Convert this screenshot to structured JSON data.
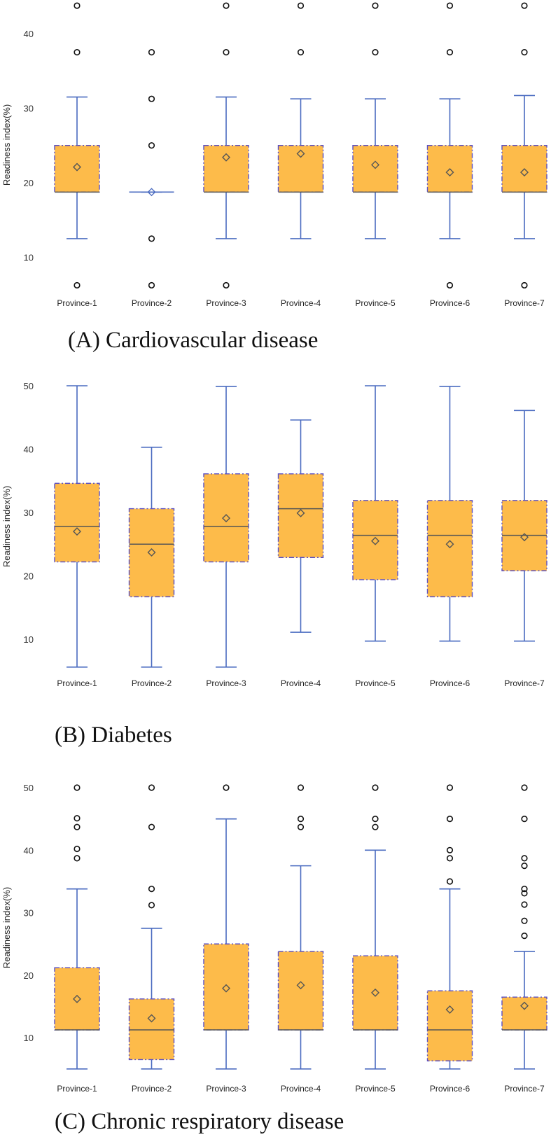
{
  "colors": {
    "box_fill": "#FDBB4A",
    "box_border": "#5A4FC4",
    "whisker": "#4A6BC0",
    "median": "#555555",
    "mean": "#555555",
    "outlier": "#111111"
  },
  "chart_data": [
    {
      "type": "box",
      "title": "(A) Cardiovascular disease",
      "ylabel": "Readiness index(%)",
      "xlabel": "",
      "yticks": [
        10,
        20,
        30,
        40
      ],
      "categories": [
        "Province-1",
        "Province-2",
        "Province-3",
        "Province-4",
        "Province-5",
        "Province-6",
        "Province-7"
      ],
      "series": [
        {
          "name": "Province-1",
          "whisker_low": 12.5,
          "q1": 18.75,
          "median": 18.75,
          "q3": 25,
          "whisker_high": 31.5,
          "mean": 22.1,
          "outliers": [
            43.75,
            37.5,
            6.25
          ]
        },
        {
          "name": "Province-2",
          "whisker_low": 18.75,
          "q1": 18.75,
          "median": 18.75,
          "q3": 18.75,
          "whisker_high": 18.75,
          "mean": 18.75,
          "outliers": [
            37.5,
            31.25,
            25,
            12.5,
            6.25
          ]
        },
        {
          "name": "Province-3",
          "whisker_low": 12.5,
          "q1": 18.75,
          "median": 18.75,
          "q3": 25,
          "whisker_high": 31.5,
          "mean": 23.4,
          "outliers": [
            43.75,
            37.5,
            6.25
          ]
        },
        {
          "name": "Province-4",
          "whisker_low": 12.5,
          "q1": 18.75,
          "median": 18.75,
          "q3": 25,
          "whisker_high": 31.25,
          "mean": 23.9,
          "outliers": [
            43.75,
            37.5
          ]
        },
        {
          "name": "Province-5",
          "whisker_low": 12.5,
          "q1": 18.75,
          "median": 18.75,
          "q3": 25,
          "whisker_high": 31.25,
          "mean": 22.4,
          "outliers": [
            43.75,
            37.5
          ]
        },
        {
          "name": "Province-6",
          "whisker_low": 12.5,
          "q1": 18.75,
          "median": 18.75,
          "q3": 25,
          "whisker_high": 31.25,
          "mean": 21.4,
          "outliers": [
            43.75,
            37.5,
            6.25
          ]
        },
        {
          "name": "Province-7",
          "whisker_low": 12.5,
          "q1": 18.75,
          "median": 18.75,
          "q3": 25,
          "whisker_high": 31.7,
          "mean": 21.4,
          "outliers": [
            43.75,
            37.5,
            6.25
          ]
        }
      ]
    },
    {
      "type": "box",
      "title": "(B) Diabetes",
      "ylabel": "Readiness index(%)",
      "xlabel": "",
      "yticks": [
        10,
        20,
        30,
        40,
        50
      ],
      "categories": [
        "Province-1",
        "Province-2",
        "Province-3",
        "Province-4",
        "Province-5",
        "Province-6",
        "Province-7"
      ],
      "series": [
        {
          "name": "Province-1",
          "whisker_low": 5.6,
          "q1": 22.2,
          "median": 27.8,
          "q3": 34.6,
          "whisker_high": 50,
          "mean": 27,
          "outliers": []
        },
        {
          "name": "Province-2",
          "whisker_low": 5.6,
          "q1": 16.7,
          "median": 25,
          "q3": 30.6,
          "whisker_high": 40.3,
          "mean": 23.7,
          "outliers": []
        },
        {
          "name": "Province-3",
          "whisker_low": 5.6,
          "q1": 22.2,
          "median": 27.8,
          "q3": 36.1,
          "whisker_high": 49.9,
          "mean": 29.1,
          "outliers": []
        },
        {
          "name": "Province-4",
          "whisker_low": 11.1,
          "q1": 22.9,
          "median": 30.6,
          "q3": 36.1,
          "whisker_high": 44.6,
          "mean": 29.9,
          "outliers": []
        },
        {
          "name": "Province-5",
          "whisker_low": 9.7,
          "q1": 19.4,
          "median": 26.4,
          "q3": 31.9,
          "whisker_high": 50,
          "mean": 25.5,
          "outliers": []
        },
        {
          "name": "Province-6",
          "whisker_low": 9.7,
          "q1": 16.7,
          "median": 26.4,
          "q3": 31.9,
          "whisker_high": 49.9,
          "mean": 25,
          "outliers": []
        },
        {
          "name": "Province-7",
          "whisker_low": 9.7,
          "q1": 20.8,
          "median": 26.4,
          "q3": 31.9,
          "whisker_high": 46.1,
          "mean": 26.1,
          "outliers": []
        }
      ]
    },
    {
      "type": "box",
      "title": "(C) Chronic respiratory disease",
      "ylabel": "Readiness index(%)",
      "xlabel": "",
      "yticks": [
        10,
        20,
        30,
        40,
        50
      ],
      "categories": [
        "Province-1",
        "Province-2",
        "Province-3",
        "Province-4",
        "Province-5",
        "Province-6",
        "Province-7"
      ],
      "series": [
        {
          "name": "Province-1",
          "whisker_low": 5,
          "q1": 11.25,
          "median": 11.25,
          "q3": 21.2,
          "whisker_high": 33.8,
          "mean": 16.2,
          "outliers": [
            50,
            45.1,
            43.7,
            40.2,
            38.7
          ]
        },
        {
          "name": "Province-2",
          "whisker_low": 5,
          "q1": 6.5,
          "median": 11.25,
          "q3": 16.2,
          "whisker_high": 27.5,
          "mean": 13.1,
          "outliers": [
            50,
            43.7,
            33.8,
            31.2
          ]
        },
        {
          "name": "Province-3",
          "whisker_low": 5,
          "q1": 11.25,
          "median": 11.25,
          "q3": 25,
          "whisker_high": 45,
          "mean": 17.9,
          "outliers": [
            50
          ]
        },
        {
          "name": "Province-4",
          "whisker_low": 5,
          "q1": 11.25,
          "median": 11.25,
          "q3": 23.8,
          "whisker_high": 37.5,
          "mean": 18.4,
          "outliers": [
            50,
            45,
            43.7
          ]
        },
        {
          "name": "Province-5",
          "whisker_low": 5,
          "q1": 11.25,
          "median": 11.25,
          "q3": 23.1,
          "whisker_high": 40,
          "mean": 17.2,
          "outliers": [
            50,
            45,
            43.7
          ]
        },
        {
          "name": "Province-6",
          "whisker_low": 5,
          "q1": 6.3,
          "median": 11.25,
          "q3": 17.5,
          "whisker_high": 33.8,
          "mean": 14.5,
          "outliers": [
            50,
            45,
            40,
            38.7,
            35
          ]
        },
        {
          "name": "Province-7",
          "whisker_low": 5,
          "q1": 11.25,
          "median": 11.25,
          "q3": 16.5,
          "whisker_high": 23.8,
          "mean": 15.1,
          "outliers": [
            50,
            45,
            38.7,
            37.5,
            33.8,
            33.1,
            31.3,
            28.7,
            26.3
          ]
        }
      ]
    }
  ]
}
